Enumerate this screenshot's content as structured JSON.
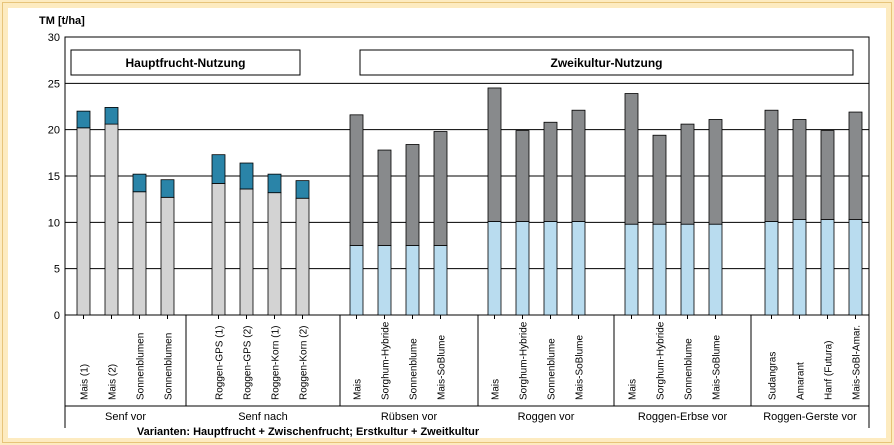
{
  "chart_data": {
    "type": "bar",
    "ylabel": "TM [t/ha]",
    "xlabel": "Varianten: Hauptfrucht + Zwischenfrucht; Erstkultur + Zweitkultur",
    "ylim": [
      0,
      30
    ],
    "yticks": [
      0,
      5,
      10,
      15,
      20,
      25,
      30
    ],
    "grid": true,
    "section_labels": [
      "Hauptfrucht-Nutzung",
      "Zweikultur-Nutzung"
    ],
    "colors": {
      "haupt_base": "#d3d3d3",
      "haupt_top": "#2a84a8",
      "zwei_base": "#b9dcef",
      "zwei_top": "#888a8c"
    },
    "groups": [
      {
        "label": "Senf vor",
        "style": "haupt",
        "bars": [
          {
            "label": "Mais (1)",
            "base": 20.2,
            "total": 22.0
          },
          {
            "label": "Mais (2)",
            "base": 20.6,
            "total": 22.4
          },
          {
            "label": "Sonnenblumen",
            "base": 13.3,
            "total": 15.2
          },
          {
            "label": "Sonnenblumen",
            "base": 12.7,
            "total": 14.6
          }
        ]
      },
      {
        "label": "Senf nach",
        "style": "haupt",
        "bars": [
          {
            "label": "Roggen-GPS (1)",
            "base": 14.2,
            "total": 17.3
          },
          {
            "label": "Roggen-GPS (2)",
            "base": 13.6,
            "total": 16.4
          },
          {
            "label": "Roggen-Korn (1)",
            "base": 13.2,
            "total": 15.2
          },
          {
            "label": "Roggen-Korn (2)",
            "base": 12.6,
            "total": 14.5
          }
        ]
      },
      {
        "label": "Rübsen vor",
        "style": "zwei",
        "bars": [
          {
            "label": "Mais",
            "base": 7.5,
            "total": 21.6
          },
          {
            "label": "Sorghum-Hybride",
            "base": 7.5,
            "total": 17.8
          },
          {
            "label": "Sonnenblume",
            "base": 7.5,
            "total": 18.4
          },
          {
            "label": "Mais-SoBlume",
            "base": 7.5,
            "total": 19.8
          }
        ]
      },
      {
        "label": "Roggen vor",
        "style": "zwei",
        "bars": [
          {
            "label": "Mais",
            "base": 10.1,
            "total": 24.5
          },
          {
            "label": "Sorghum-Hybride",
            "base": 10.1,
            "total": 19.9
          },
          {
            "label": "Sonnenblume",
            "base": 10.1,
            "total": 20.8
          },
          {
            "label": "Mais-SoBlume",
            "base": 10.1,
            "total": 22.1
          }
        ]
      },
      {
        "label": "Roggen-Erbse vor",
        "style": "zwei",
        "bars": [
          {
            "label": "Mais",
            "base": 9.8,
            "total": 23.9
          },
          {
            "label": "Sorghum-Hybride",
            "base": 9.8,
            "total": 19.4
          },
          {
            "label": "Sonnenblume",
            "base": 9.8,
            "total": 20.6
          },
          {
            "label": "Mais-SoBlume",
            "base": 9.8,
            "total": 21.1
          }
        ]
      },
      {
        "label": "Roggen-Gerste vor",
        "style": "zwei",
        "bars": [
          {
            "label": "Sudangras",
            "base": 10.1,
            "total": 22.1
          },
          {
            "label": "Amarant",
            "base": 10.3,
            "total": 21.1
          },
          {
            "label": "Hanf (Futura)",
            "base": 10.3,
            "total": 19.9
          },
          {
            "label": "Mais-SoBl-Amar.",
            "base": 10.3,
            "total": 21.9
          }
        ]
      }
    ]
  }
}
